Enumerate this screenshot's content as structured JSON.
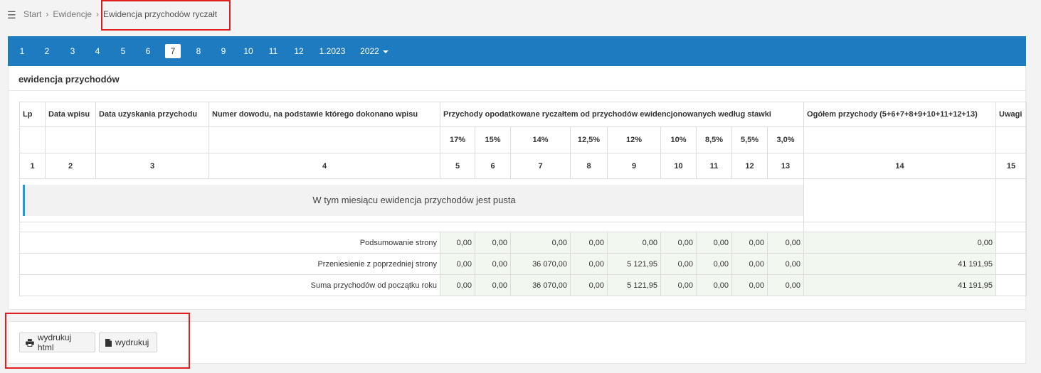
{
  "breadcrumb": {
    "items": [
      "Start",
      "Ewidencje"
    ],
    "current": "Ewidencja przychodów ryczałt"
  },
  "months": {
    "items": [
      "1",
      "2",
      "3",
      "4",
      "5",
      "6",
      "7",
      "8",
      "9",
      "10",
      "11",
      "12",
      "1.2023"
    ],
    "active": "7",
    "year": "2022"
  },
  "panel": {
    "title": "ewidencja przychodów"
  },
  "table": {
    "headers": {
      "lp": "Lp",
      "data_wpisu": "Data wpisu",
      "data_uzyskania": "Data uzyskania przychodu",
      "numer_dowodu": "Numer dowodu, na podstawie którego dokonano wpisu",
      "przychody": "Przychody opodatkowane ryczałtem od przychodów ewidencjonowanych według stawki",
      "ogolem": "Ogółem przychody (5+6+7+8+9+10+11+12+13)",
      "uwagi": "Uwagi"
    },
    "rates": [
      "17%",
      "15%",
      "14%",
      "12,5%",
      "12%",
      "10%",
      "8,5%",
      "5,5%",
      "3,0%"
    ],
    "column_numbers": [
      "1",
      "2",
      "3",
      "4",
      "5",
      "6",
      "7",
      "8",
      "9",
      "10",
      "11",
      "12",
      "13",
      "14",
      "15"
    ],
    "empty_message": "W tym miesiącu ewidencja przychodów jest pusta",
    "summary_rows": [
      {
        "label": "Podsumowanie strony",
        "values": [
          "0,00",
          "0,00",
          "0,00",
          "0,00",
          "0,00",
          "0,00",
          "0,00",
          "0,00",
          "0,00"
        ],
        "total": "0,00"
      },
      {
        "label": "Przeniesienie z poprzedniej strony",
        "values": [
          "0,00",
          "0,00",
          "36 070,00",
          "0,00",
          "5 121,95",
          "0,00",
          "0,00",
          "0,00",
          "0,00"
        ],
        "total": "41 191,95"
      },
      {
        "label": "Suma przychodów od początku roku",
        "values": [
          "0,00",
          "0,00",
          "36 070,00",
          "0,00",
          "5 121,95",
          "0,00",
          "0,00",
          "0,00",
          "0,00"
        ],
        "total": "41 191,95"
      }
    ]
  },
  "buttons": {
    "print_html": "wydrukuj html",
    "print": "wydrukuj"
  },
  "colors": {
    "accent": "#1f7bbf",
    "highlight_box": "#e02020",
    "summary_fill": "#f2f8ef"
  }
}
